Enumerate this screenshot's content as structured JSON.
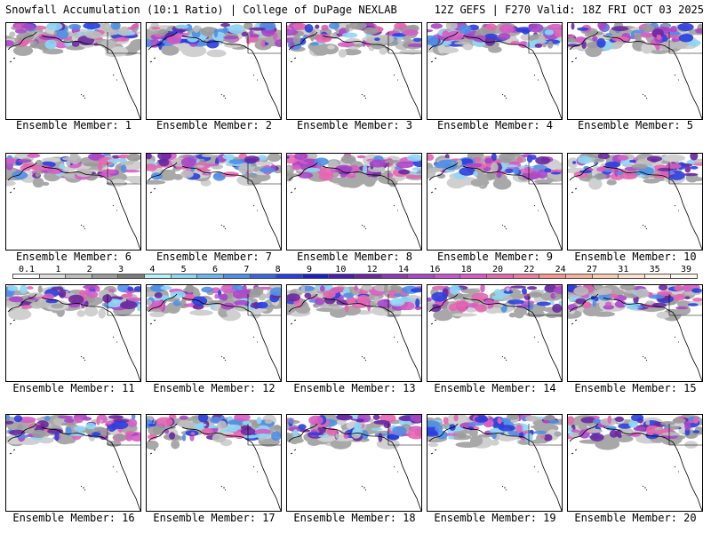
{
  "header": {
    "title": "Snowfall Accumulation (10:1 Ratio) | College of DuPage NEXLAB",
    "run_info": "12Z GEFS | F270 Valid: 18Z FRI OCT 03 2025"
  },
  "legend": {
    "labels": [
      "0.1",
      "1",
      "2",
      "3",
      "4",
      "5",
      "6",
      "7",
      "8",
      "9",
      "10",
      "12",
      "14",
      "16",
      "18",
      "20",
      "22",
      "24",
      "27",
      "31",
      "35",
      "39"
    ],
    "colors": [
      "#ffffff",
      "#dcdcdc",
      "#bcbcbc",
      "#9a9a9a",
      "#7a7a7a",
      "#b4f0f8",
      "#8ed6f5",
      "#6cb4ee",
      "#4f8ee6",
      "#3c66e0",
      "#2a3ede",
      "#1e1ec8",
      "#4a1eb4",
      "#6a28a0",
      "#8a3ab4",
      "#a846c8",
      "#c456d2",
      "#d65cc4",
      "#e466b0",
      "#ee7aa0",
      "#f4968e",
      "#f6b29a",
      "#f8ccb4",
      "#fae0d0",
      "#fceee4",
      "#fff8f2"
    ]
  },
  "panels": [
    {
      "caption": "Ensemble Member: 1"
    },
    {
      "caption": "Ensemble Member: 2"
    },
    {
      "caption": "Ensemble Member: 3"
    },
    {
      "caption": "Ensemble Member: 4"
    },
    {
      "caption": "Ensemble Member: 5"
    },
    {
      "caption": "Ensemble Member: 6"
    },
    {
      "caption": "Ensemble Member: 7"
    },
    {
      "caption": "Ensemble Member: 8"
    },
    {
      "caption": "Ensemble Member: 9"
    },
    {
      "caption": "Ensemble Member: 10"
    },
    {
      "caption": "Ensemble Member: 11"
    },
    {
      "caption": "Ensemble Member: 12"
    },
    {
      "caption": "Ensemble Member: 13"
    },
    {
      "caption": "Ensemble Member: 14"
    },
    {
      "caption": "Ensemble Member: 15"
    },
    {
      "caption": "Ensemble Member: 16"
    },
    {
      "caption": "Ensemble Member: 17"
    },
    {
      "caption": "Ensemble Member: 18"
    },
    {
      "caption": "Ensemble Member: 19"
    },
    {
      "caption": "Ensemble Member: 20"
    }
  ]
}
